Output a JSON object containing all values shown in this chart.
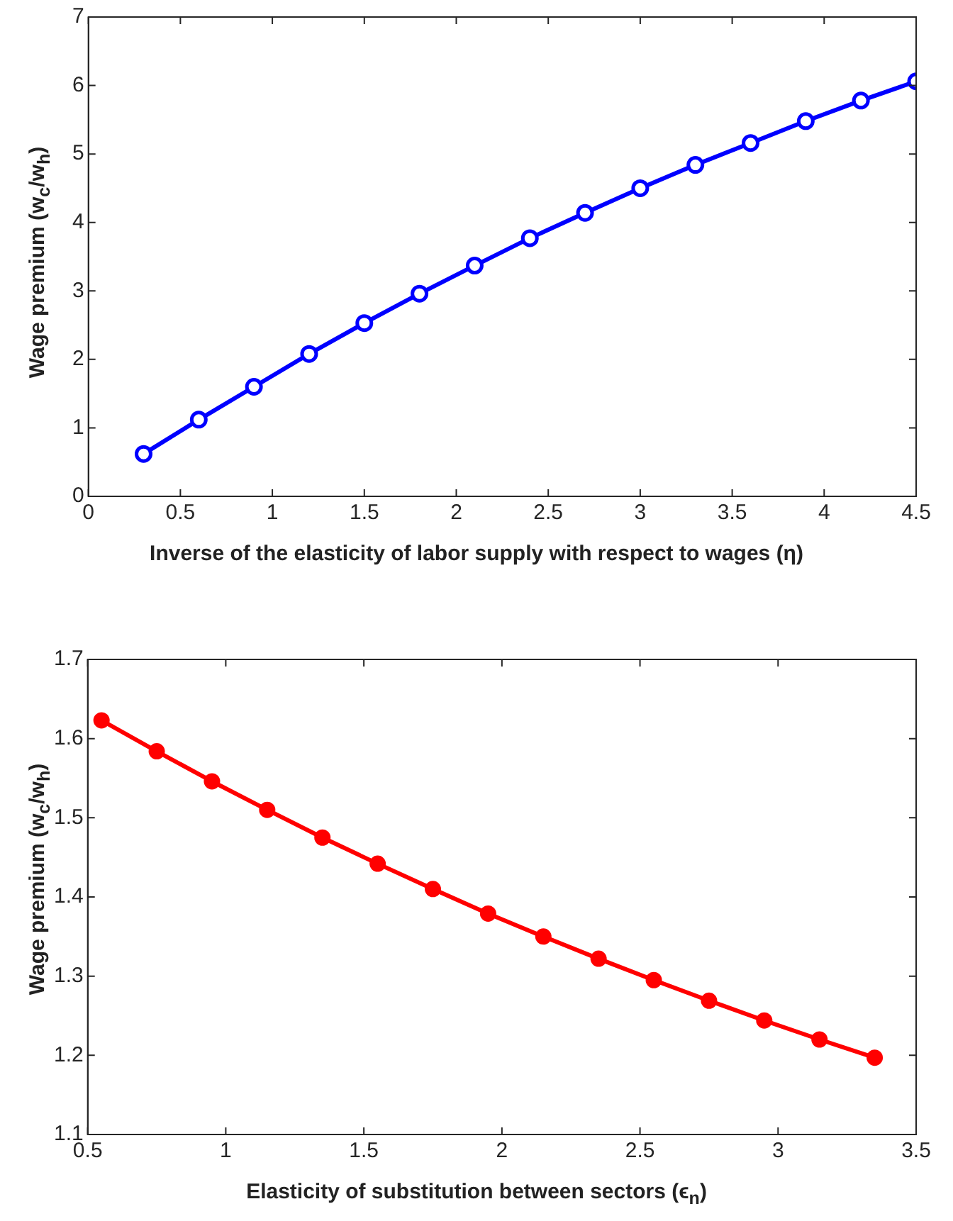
{
  "chart_data": [
    {
      "type": "line",
      "xlabel": "Inverse of the elasticity of labor supply with respect to wages (η)",
      "ylabel": "Wage premium (w$_{c}$/w$_{h}$)",
      "x": [
        0.3,
        0.6,
        0.9,
        1.2,
        1.5,
        1.8,
        2.1,
        2.4,
        2.7,
        3.0,
        3.3,
        3.6,
        3.9,
        4.2,
        4.5
      ],
      "series": [
        {
          "color": "#0000ff",
          "values": [
            0.62,
            1.12,
            1.6,
            2.08,
            2.53,
            2.96,
            3.37,
            3.77,
            4.14,
            4.5,
            4.84,
            5.16,
            5.48,
            5.78,
            6.06
          ]
        }
      ],
      "xlim": [
        0,
        4.5
      ],
      "xticks": [
        0,
        0.5,
        1,
        1.5,
        2,
        2.5,
        3,
        3.5,
        4,
        4.5
      ],
      "ylim": [
        0,
        7
      ],
      "yticks": [
        0,
        1,
        2,
        3,
        4,
        5,
        6,
        7
      ],
      "grid": false,
      "legend": false,
      "marker": "circle",
      "line_style": "solid"
    },
    {
      "type": "line",
      "xlabel": "Elasticity of substitution between sectors (ϵ$_{n}$)",
      "ylabel": "Wage premium (w$_{c}$/w$_{h}$)",
      "x": [
        0.55,
        0.75,
        0.95,
        1.15,
        1.35,
        1.55,
        1.75,
        1.95,
        2.15,
        2.35,
        2.55,
        2.75,
        2.95,
        3.15,
        3.35
      ],
      "series": [
        {
          "color": "#ff0000",
          "values": [
            1.623,
            1.584,
            1.546,
            1.51,
            1.475,
            1.442,
            1.41,
            1.379,
            1.35,
            1.322,
            1.295,
            1.269,
            1.244,
            1.22,
            1.197
          ]
        }
      ],
      "xlim": [
        0.5,
        3.5
      ],
      "xticks": [
        0.5,
        1,
        1.5,
        2,
        2.5,
        3,
        3.5
      ],
      "ylim": [
        1.1,
        1.7
      ],
      "yticks": [
        1.1,
        1.2,
        1.3,
        1.4,
        1.5,
        1.6,
        1.7
      ],
      "grid": false,
      "legend": false,
      "marker": "circle",
      "line_style": "solid"
    }
  ]
}
